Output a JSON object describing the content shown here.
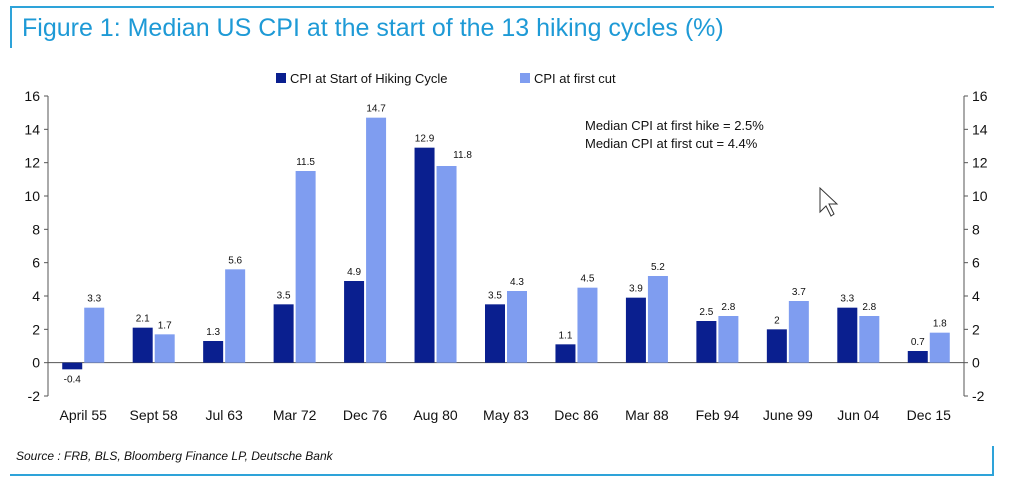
{
  "title": "Figure 1: Median US CPI at the start of the 13 hiking cycles (%)",
  "source": "Source : FRB, BLS, Bloomberg Finance LP, Deutsche Bank",
  "colors": {
    "series1": "#0a1f8f",
    "series2": "#7f9df0",
    "frame": "#2ea3d9"
  },
  "chart_data": {
    "type": "bar",
    "categories": [
      "April 55",
      "Sept 58",
      "Jul 63",
      "Mar 72",
      "Dec 76",
      "Aug 80",
      "May 83",
      "Dec 86",
      "Mar 88",
      "Feb 94",
      "June 99",
      "Jun 04",
      "Dec 15"
    ],
    "series": [
      {
        "name": "CPI at Start of Hiking Cycle",
        "values": [
          -0.4,
          2.1,
          1.3,
          3.5,
          4.9,
          12.9,
          3.5,
          1.1,
          3.9,
          2.5,
          2,
          3.3,
          0.7
        ],
        "labels": [
          "-0.4",
          "2.1",
          "1.3",
          "3.5",
          "4.9",
          "12.9",
          "3.5",
          "1.1",
          "3.9",
          "2.5",
          "2",
          "3.3",
          "0.7"
        ]
      },
      {
        "name": "CPI at first cut",
        "values": [
          3.3,
          1.7,
          5.6,
          11.5,
          14.7,
          11.8,
          4.3,
          4.5,
          5.2,
          2.8,
          3.7,
          2.8,
          1.8
        ],
        "labels": [
          "3.3",
          "1.7",
          "5.6",
          "11.5",
          "14.7",
          "11.8",
          "4.3",
          "4.5",
          "5.2",
          "2.8",
          "3.7",
          "2.8",
          "1.8"
        ]
      }
    ],
    "ylim": [
      -2,
      16
    ],
    "yticks": [
      "-2",
      "0",
      "2",
      "4",
      "6",
      "8",
      "10",
      "12",
      "14",
      "16"
    ],
    "secondary_yticks": [
      "-2",
      "0",
      "2",
      "4",
      "6",
      "8",
      "10",
      "12",
      "14",
      "16"
    ],
    "legend_position": "top-center",
    "annotations": [
      "Median CPI at first hike = 2.5%",
      "Median CPI at first cut   = 4.4%"
    ],
    "grid": false
  }
}
